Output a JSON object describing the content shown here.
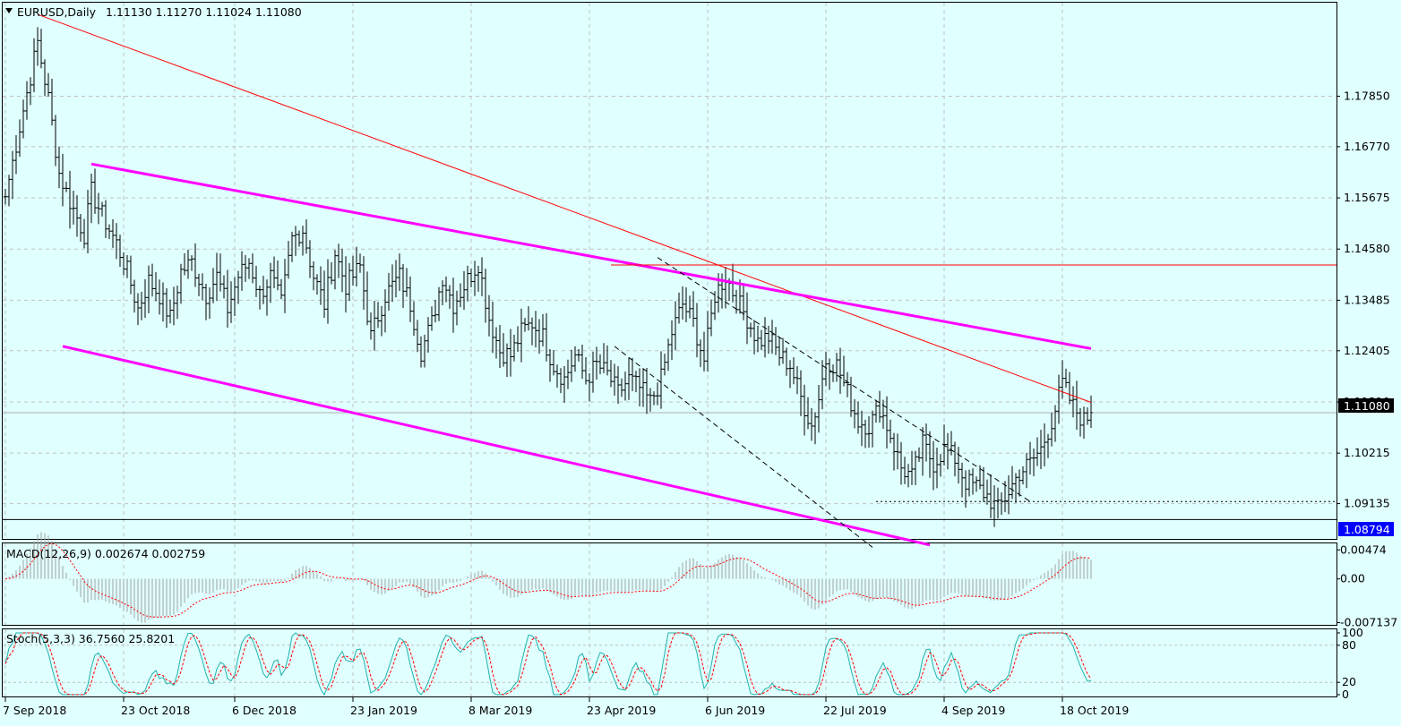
{
  "window": {
    "title_symbol": "EURUSD,Daily",
    "ohlc": "1.11130 1.11270 1.11024 1.11080"
  },
  "chart_data": {
    "type": "candlestick",
    "symbol": "EURUSD",
    "timeframe": "Daily",
    "ohlc_last": {
      "open": 1.1113,
      "high": 1.1127,
      "low": 1.11024,
      "close": 1.1108
    },
    "price_axis": {
      "range": [
        1.0838,
        1.1985
      ],
      "ticks": [
        "1.17850",
        "1.16770",
        "1.15675",
        "1.14580",
        "1.13485",
        "1.12405",
        "1.11310",
        "1.10215",
        "1.09135"
      ],
      "current_price_label": "1.11080",
      "current_price": 1.1108,
      "marked_price_label": "1.08794",
      "marked_price": 1.08794
    },
    "date_axis": {
      "labels": [
        "7 Sep 2018",
        "23 Oct 2018",
        "6 Dec 2018",
        "23 Jan 2019",
        "8 Mar 2019",
        "23 Apr 2019",
        "6 Jun 2019",
        "22 Jul 2019",
        "4 Sep 2019",
        "18 Oct 2019"
      ],
      "label_bar_index": [
        0,
        33,
        64,
        97,
        130,
        163,
        196,
        229,
        262,
        295
      ]
    },
    "anchor_closes": [
      [
        0,
        1.157
      ],
      [
        4,
        1.172
      ],
      [
        9,
        1.19
      ],
      [
        12,
        1.178
      ],
      [
        15,
        1.162
      ],
      [
        18,
        1.156
      ],
      [
        22,
        1.149
      ],
      [
        24,
        1.158
      ],
      [
        27,
        1.153
      ],
      [
        31,
        1.147
      ],
      [
        34,
        1.141
      ],
      [
        37,
        1.133
      ],
      [
        40,
        1.139
      ],
      [
        43,
        1.136
      ],
      [
        46,
        1.131
      ],
      [
        49,
        1.141
      ],
      [
        52,
        1.143
      ],
      [
        56,
        1.136
      ],
      [
        59,
        1.14
      ],
      [
        62,
        1.133
      ],
      [
        65,
        1.14
      ],
      [
        68,
        1.143
      ],
      [
        71,
        1.136
      ],
      [
        74,
        1.14
      ],
      [
        77,
        1.134
      ],
      [
        80,
        1.148
      ],
      [
        83,
        1.15
      ],
      [
        86,
        1.14
      ],
      [
        89,
        1.134
      ],
      [
        92,
        1.145
      ],
      [
        95,
        1.138
      ],
      [
        99,
        1.142
      ],
      [
        102,
        1.127
      ],
      [
        106,
        1.136
      ],
      [
        110,
        1.14
      ],
      [
        113,
        1.134
      ],
      [
        116,
        1.124
      ],
      [
        119,
        1.13
      ],
      [
        122,
        1.14
      ],
      [
        125,
        1.134
      ],
      [
        128,
        1.138
      ],
      [
        132,
        1.143
      ],
      [
        135,
        1.131
      ],
      [
        138,
        1.124
      ],
      [
        141,
        1.123
      ],
      [
        144,
        1.128
      ],
      [
        147,
        1.13
      ],
      [
        150,
        1.127
      ],
      [
        153,
        1.121
      ],
      [
        156,
        1.118
      ],
      [
        159,
        1.123
      ],
      [
        162,
        1.118
      ],
      [
        165,
        1.121
      ],
      [
        168,
        1.119
      ],
      [
        171,
        1.115
      ],
      [
        174,
        1.118
      ],
      [
        177,
        1.116
      ],
      [
        180,
        1.113
      ],
      [
        183,
        1.118
      ],
      [
        186,
        1.128
      ],
      [
        189,
        1.134
      ],
      [
        192,
        1.13
      ],
      [
        195,
        1.122
      ],
      [
        198,
        1.136
      ],
      [
        201,
        1.14
      ],
      [
        204,
        1.135
      ],
      [
        207,
        1.131
      ],
      [
        210,
        1.126
      ],
      [
        213,
        1.127
      ],
      [
        216,
        1.123
      ],
      [
        219,
        1.121
      ],
      [
        222,
        1.114
      ],
      [
        225,
        1.108
      ],
      [
        227,
        1.114
      ],
      [
        229,
        1.122
      ],
      [
        232,
        1.121
      ],
      [
        235,
        1.115
      ],
      [
        238,
        1.109
      ],
      [
        241,
        1.108
      ],
      [
        244,
        1.112
      ],
      [
        247,
        1.106
      ],
      [
        250,
        1.099
      ],
      [
        253,
        1.097
      ],
      [
        256,
        1.104
      ],
      [
        259,
        1.1
      ],
      [
        262,
        1.103
      ],
      [
        265,
        1.101
      ],
      [
        268,
        1.096
      ],
      [
        271,
        1.095
      ],
      [
        274,
        1.093
      ],
      [
        277,
        1.09
      ],
      [
        280,
        1.094
      ],
      [
        283,
        1.098
      ],
      [
        286,
        1.1
      ],
      [
        289,
        1.103
      ],
      [
        292,
        1.109
      ],
      [
        295,
        1.117
      ],
      [
        298,
        1.112
      ],
      [
        301,
        1.109
      ],
      [
        303,
        1.1108
      ]
    ],
    "trendlines": [
      {
        "color": "#ff0000",
        "style": "solid",
        "points": [
          [
            9,
            1.196
          ],
          [
            303,
            1.113
          ]
        ]
      },
      {
        "color": "#ff00ff",
        "style": "solid-thick",
        "points": [
          [
            24,
            1.164
          ],
          [
            303,
            1.1245
          ]
        ]
      },
      {
        "color": "#ff00ff",
        "style": "solid-thick",
        "points": [
          [
            16,
            1.125
          ],
          [
            258,
            1.0825
          ]
        ]
      },
      {
        "color": "#ff0000",
        "style": "horizontal",
        "price": 1.1424,
        "from_bar": 169
      },
      {
        "color": "#000000",
        "style": "dashed",
        "points": [
          [
            182,
            1.144
          ],
          [
            286,
            1.0918
          ]
        ]
      },
      {
        "color": "#000000",
        "style": "dashed",
        "points": [
          [
            170,
            1.125
          ],
          [
            242,
            1.082
          ]
        ]
      },
      {
        "color": "#000000",
        "style": "dotted-horizontal",
        "price": 1.0918,
        "from_bar": 243
      }
    ],
    "indicators": [
      {
        "name": "MACD(12,26,9)",
        "label": "MACD(12,26,9) 0.002674 0.002759",
        "values": [
          0.002674,
          0.002759
        ],
        "ticks": [
          "0.00474",
          "0.00",
          "-0.007137"
        ],
        "range": [
          -0.0075,
          0.0058
        ],
        "series": [
          {
            "name": "histogram",
            "type": "bar",
            "color": "#a0a0a0"
          },
          {
            "name": "signal",
            "type": "dotted-line",
            "color": "#ff0000"
          }
        ]
      },
      {
        "name": "Stoch(5,3,3)",
        "label": "Stoch(5,3,3) 36.7560 25.8201",
        "values": [
          36.756,
          25.8201
        ],
        "ticks": [
          "100",
          "80",
          "20",
          "0"
        ],
        "levels": [
          80,
          20
        ],
        "range": [
          0,
          100
        ],
        "series": [
          {
            "name": "main",
            "type": "line",
            "color": "#20b2aa"
          },
          {
            "name": "signal",
            "type": "dashed-line",
            "color": "#ff0000"
          }
        ]
      }
    ],
    "colors": {
      "background": "#e0ffff",
      "bar": "#000000",
      "grid": "#c0c0c0",
      "current_price_box": "#000000",
      "marked_price_box": "#0000ff"
    }
  }
}
